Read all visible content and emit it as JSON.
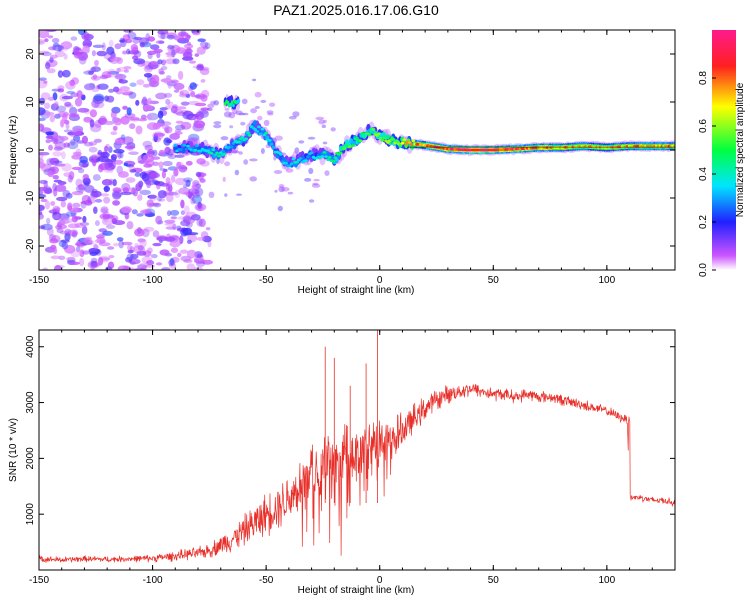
{
  "figure_title": "PAZ1.2025.016.17.06.G10",
  "chart_data": [
    {
      "type": "heatmap",
      "xlabel": "Height of straight line (km)",
      "ylabel": "Frequency (Hz)",
      "xlim": [
        -150,
        130
      ],
      "ylim": [
        -25,
        25
      ],
      "xticks": [
        -150,
        -100,
        -50,
        0,
        50,
        100
      ],
      "yticks": [
        -20,
        -10,
        0,
        10,
        20
      ],
      "colorbar": {
        "label": "Normalized spectral amplitude",
        "range": [
          0,
          1
        ],
        "ticks": [
          "0.0",
          "0.2",
          "0.4",
          "0.6",
          "0.8"
        ],
        "colors": [
          "#ffffff",
          "#cc55ff",
          "#2020ff",
          "#00e5ff",
          "#00ff40",
          "#ffff00",
          "#ff2020",
          "#ff1a8c"
        ]
      },
      "ridge": {
        "x": [
          -90,
          -80,
          -70,
          -65,
          -60,
          -55,
          -50,
          -45,
          -40,
          -35,
          -30,
          -25,
          -20,
          -15,
          -10,
          -5,
          0,
          5,
          10,
          20,
          30,
          40,
          50,
          60,
          70,
          80,
          90,
          100,
          110,
          120,
          130
        ],
        "y": [
          0.5,
          0.5,
          -1,
          1,
          2,
          5,
          3,
          -1,
          -3,
          -2,
          -1,
          -1,
          -2,
          1,
          2,
          4,
          3,
          2,
          1.5,
          1,
          0.2,
          0,
          0,
          0.2,
          0.5,
          0.5,
          0.8,
          0.5,
          0.8,
          0.8,
          0.8
        ],
        "amplitude": [
          0.3,
          0.35,
          0.4,
          0.3,
          0.45,
          0.35,
          0.4,
          0.35,
          0.35,
          0.35,
          0.3,
          0.4,
          0.45,
          0.5,
          0.5,
          0.5,
          0.55,
          0.6,
          0.65,
          0.8,
          0.9,
          0.95,
          0.9,
          0.85,
          0.8,
          0.75,
          0.7,
          0.7,
          0.75,
          0.8,
          0.75
        ]
      },
      "branch": {
        "x": [
          -68,
          -65,
          -62
        ],
        "y": [
          10,
          10,
          10
        ],
        "amplitude": [
          0.45,
          0.45,
          0.4
        ]
      }
    },
    {
      "type": "line",
      "xlabel": "Height of straight line (km)",
      "ylabel": "SNR (10 * v/v)",
      "xlim": [
        -150,
        130
      ],
      "ylim": [
        0,
        4300
      ],
      "xticks": [
        -150,
        -100,
        -50,
        0,
        50,
        100
      ],
      "yticks": [
        1000,
        2000,
        3000,
        4000
      ],
      "series": [
        {
          "color": "#e8302a",
          "x": [
            -150,
            -140,
            -130,
            -120,
            -110,
            -100,
            -90,
            -85,
            -80,
            -75,
            -70,
            -65,
            -60,
            -55,
            -50,
            -45,
            -40,
            -35,
            -30,
            -25,
            -20,
            -15,
            -10,
            -5,
            0,
            5,
            10,
            15,
            20,
            25,
            30,
            35,
            40,
            45,
            50,
            55,
            60,
            65,
            70,
            75,
            80,
            85,
            90,
            95,
            100,
            105,
            109,
            110,
            115,
            120,
            125,
            130
          ],
          "y": [
            200,
            180,
            200,
            190,
            200,
            210,
            250,
            280,
            300,
            350,
            450,
            550,
            700,
            850,
            1000,
            1150,
            1300,
            1500,
            1700,
            1900,
            1800,
            2100,
            2000,
            2100,
            2300,
            2300,
            2500,
            2700,
            2900,
            3050,
            3150,
            3200,
            3250,
            3200,
            3150,
            3150,
            3100,
            3150,
            3100,
            3100,
            3050,
            3000,
            2950,
            2900,
            2850,
            2750,
            2700,
            1300,
            1300,
            1250,
            1250,
            1200
          ],
          "noise": [
            50,
            50,
            50,
            50,
            50,
            60,
            80,
            90,
            100,
            120,
            160,
            200,
            250,
            300,
            350,
            380,
            420,
            480,
            520,
            600,
            600,
            560,
            560,
            560,
            500,
            360,
            300,
            240,
            200,
            170,
            150,
            130,
            120,
            110,
            110,
            100,
            100,
            100,
            100,
            90,
            90,
            90,
            90,
            80,
            80,
            80,
            80,
            60,
            60,
            60,
            60,
            60
          ]
        }
      ],
      "spikes": [
        {
          "x": -24,
          "y": 4000
        },
        {
          "x": -20,
          "y": 3800
        },
        {
          "x": -1,
          "y": 4300
        },
        {
          "x": -6,
          "y": 3700
        },
        {
          "x": -13,
          "y": 3300
        }
      ]
    }
  ]
}
